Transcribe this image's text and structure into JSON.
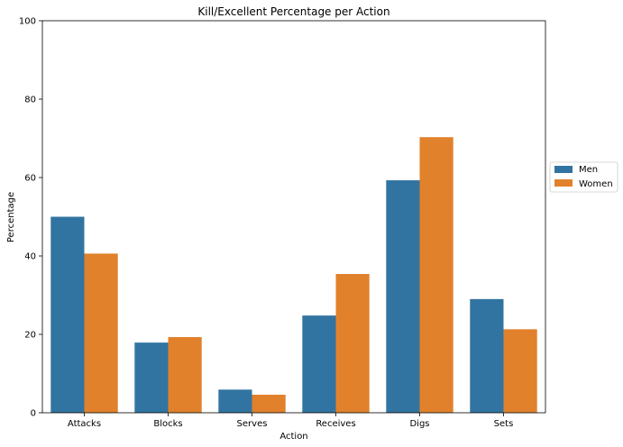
{
  "chart_data": {
    "type": "bar",
    "title": "Kill/Excellent Percentage per Action",
    "xlabel": "Action",
    "ylabel": "Percentage",
    "categories": [
      "Attacks",
      "Blocks",
      "Serves",
      "Receives",
      "Digs",
      "Sets"
    ],
    "series": [
      {
        "name": "Men",
        "values": [
          50.0,
          17.9,
          5.9,
          24.8,
          59.3,
          29.0
        ],
        "color": "#3274a1"
      },
      {
        "name": "Women",
        "values": [
          40.6,
          19.3,
          4.6,
          35.4,
          70.3,
          21.3
        ],
        "color": "#e1812c"
      }
    ],
    "ylim": [
      0,
      100
    ],
    "yticks": [
      0,
      20,
      40,
      60,
      80,
      100
    ],
    "grid": false,
    "legend_position": "right"
  }
}
